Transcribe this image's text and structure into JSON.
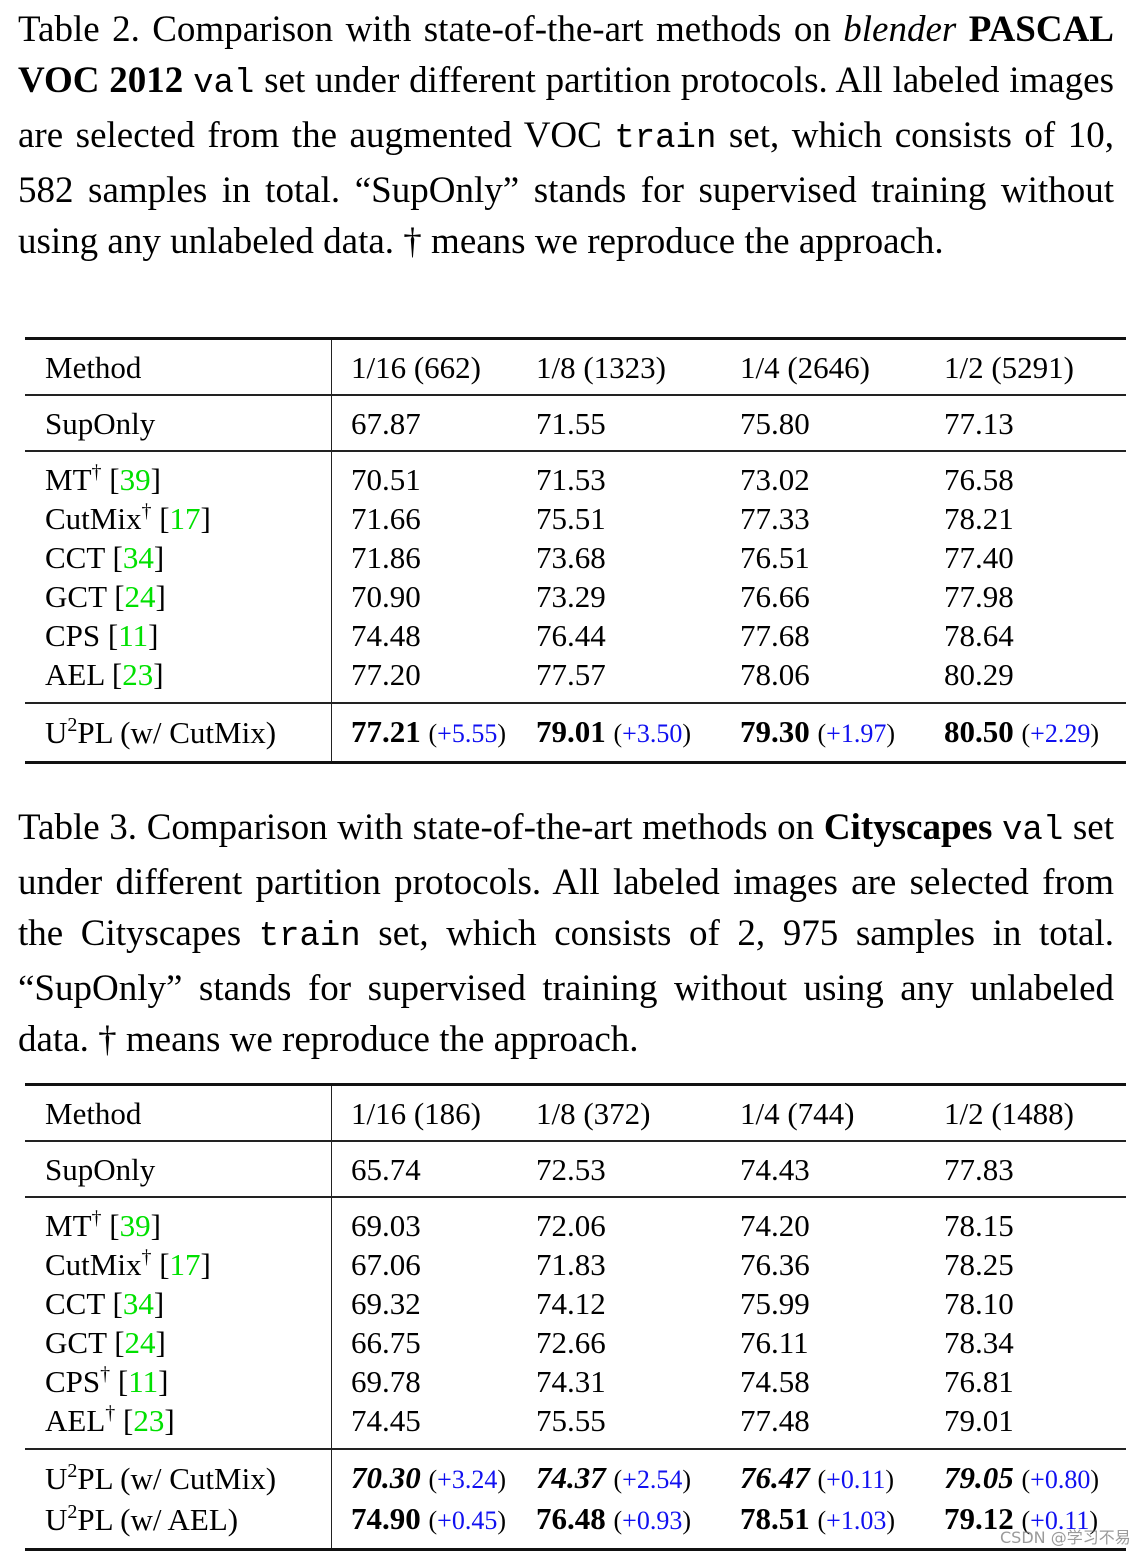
{
  "table2": {
    "caption": {
      "label": "Table 2.",
      "part1": " Comparison with state-of-the-art methods on ",
      "italic": "blender",
      "bold": "PASCAL VOC 2012",
      "mono1": "val",
      "part2": " set under different partition protocols. All labeled images are selected from the augmented VOC ",
      "mono2": "train",
      "part3": " set, which consists of 10, 582 samples in total. “SupOnly” stands for supervised training without using any unlabeled data. † means we reproduce the approach."
    },
    "header": [
      "Method",
      "1/16 (662)",
      "1/8 (1323)",
      "1/4 (2646)",
      "1/2 (5291)"
    ],
    "suponly": {
      "name": "SupOnly",
      "values": [
        "67.87",
        "71.55",
        "75.80",
        "77.13"
      ]
    },
    "methods": [
      {
        "name": "MT",
        "dagger": "†",
        "cite": "39",
        "values": [
          "70.51",
          "71.53",
          "73.02",
          "76.58"
        ]
      },
      {
        "name": "CutMix",
        "dagger": "†",
        "cite": "17",
        "values": [
          "71.66",
          "75.51",
          "77.33",
          "78.21"
        ]
      },
      {
        "name": "CCT",
        "dagger": "",
        "cite": "34",
        "values": [
          "71.86",
          "73.68",
          "76.51",
          "77.40"
        ]
      },
      {
        "name": "GCT",
        "dagger": "",
        "cite": "24",
        "values": [
          "70.90",
          "73.29",
          "76.66",
          "77.98"
        ]
      },
      {
        "name": "CPS",
        "dagger": "",
        "cite": "11",
        "values": [
          "74.48",
          "76.44",
          "77.68",
          "78.64"
        ]
      },
      {
        "name": "AEL",
        "dagger": "",
        "cite": "23",
        "values": [
          "77.20",
          "77.57",
          "78.06",
          "80.29"
        ]
      }
    ],
    "ours": [
      {
        "name_pre": "U",
        "name_sup": "2",
        "name_post": "PL (w/ CutMix)",
        "style": "bold",
        "values": [
          "77.21",
          "79.01",
          "79.30",
          "80.50"
        ],
        "gains": [
          "+5.55",
          "+3.50",
          "+1.97",
          "+2.29"
        ]
      }
    ]
  },
  "table3": {
    "caption": {
      "label": "Table 3.",
      "part1": " Comparison with state-of-the-art methods on ",
      "bold": "Cityscapes",
      "mono1": "val",
      "part2": " set under different partition protocols. All labeled images are selected from the Cityscapes ",
      "mono2": "train",
      "part3": " set, which consists of 2, 975 samples in total. “SupOnly” stands for supervised training without using any unlabeled data. † means we reproduce the approach."
    },
    "header": [
      "Method",
      "1/16 (186)",
      "1/8 (372)",
      "1/4 (744)",
      "1/2 (1488)"
    ],
    "suponly": {
      "name": "SupOnly",
      "values": [
        "65.74",
        "72.53",
        "74.43",
        "77.83"
      ]
    },
    "methods": [
      {
        "name": "MT",
        "dagger": "†",
        "cite": "39",
        "values": [
          "69.03",
          "72.06",
          "74.20",
          "78.15"
        ]
      },
      {
        "name": "CutMix",
        "dagger": "†",
        "cite": "17",
        "values": [
          "67.06",
          "71.83",
          "76.36",
          "78.25"
        ]
      },
      {
        "name": "CCT",
        "dagger": "",
        "cite": "34",
        "values": [
          "69.32",
          "74.12",
          "75.99",
          "78.10"
        ]
      },
      {
        "name": "GCT",
        "dagger": "",
        "cite": "24",
        "values": [
          "66.75",
          "72.66",
          "76.11",
          "78.34"
        ]
      },
      {
        "name": "CPS",
        "dagger": "†",
        "cite": "11",
        "values": [
          "69.78",
          "74.31",
          "74.58",
          "76.81"
        ]
      },
      {
        "name": "AEL",
        "dagger": "†",
        "cite": "23",
        "values": [
          "74.45",
          "75.55",
          "77.48",
          "79.01"
        ]
      }
    ],
    "ours": [
      {
        "name_pre": "U",
        "name_sup": "2",
        "name_post": "PL (w/ CutMix)",
        "style": "bold-italic",
        "values": [
          "70.30",
          "74.37",
          "76.47",
          "79.05"
        ],
        "gains": [
          "+3.24",
          "+2.54",
          "+0.11",
          "+0.80"
        ]
      },
      {
        "name_pre": "U",
        "name_sup": "2",
        "name_post": "PL (w/ AEL)",
        "style": "bold",
        "values": [
          "74.90",
          "76.48",
          "78.51",
          "79.12"
        ],
        "gains": [
          "+0.45",
          "+0.93",
          "+1.03",
          "+0.11"
        ]
      }
    ]
  },
  "colors": {
    "citation": "#00e000",
    "gain": "#1010f0"
  },
  "watermark": "CSDN @学习不易"
}
